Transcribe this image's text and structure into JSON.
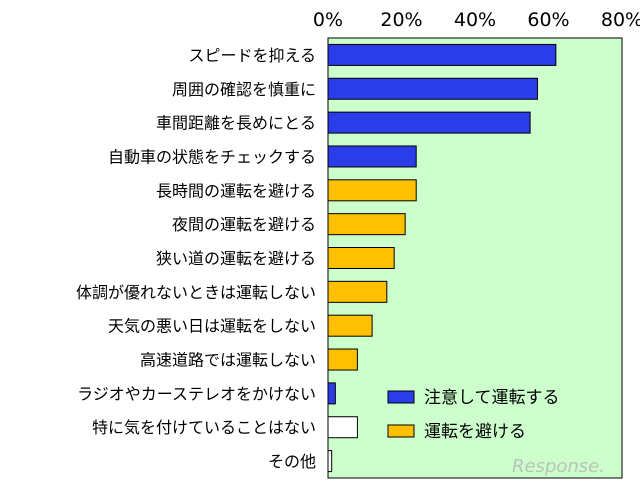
{
  "chart_data": {
    "type": "bar",
    "orientation": "horizontal",
    "xlim": [
      0,
      80
    ],
    "ticks": [
      0,
      20,
      40,
      60,
      80
    ],
    "tick_labels": [
      "0%",
      "20%",
      "40%",
      "60%",
      "80%"
    ],
    "categories": [
      "スピードを抑える",
      "周囲の確認を慎重に",
      "車間距離を長めにとる",
      "自動車の状態をチェックする",
      "長時間の運転を避ける",
      "夜間の運転を避ける",
      "狭い道の運転を避ける",
      "体調が優れないときは運転しない",
      "天気の悪い日は運転をしない",
      "高速道路では運転しない",
      "ラジオやカーステレオをかけない",
      "特に気を付けていることはない",
      "その他"
    ],
    "values": [
      62,
      57,
      55,
      24,
      24,
      21,
      18,
      16,
      12,
      8,
      2,
      8,
      1
    ],
    "groups": [
      "drive",
      "drive",
      "drive",
      "drive",
      "avoid",
      "avoid",
      "avoid",
      "avoid",
      "avoid",
      "avoid",
      "drive",
      "none",
      "none"
    ],
    "legend": [
      {
        "key": "drive",
        "label": "注意して運転する"
      },
      {
        "key": "avoid",
        "label": "運転を避ける"
      }
    ],
    "legend_position": "bottom-right"
  },
  "colors": {
    "drive": "#2a3de8",
    "avoid": "#ffc000",
    "none": "#ffffff",
    "plot_bg": "#ccffcc"
  },
  "watermark": "Response."
}
